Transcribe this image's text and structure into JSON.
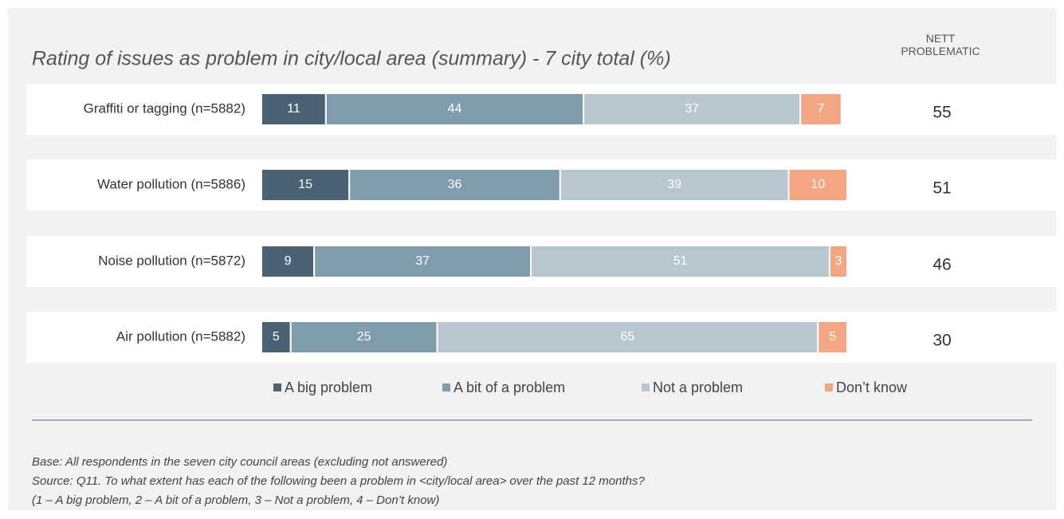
{
  "chart_data": {
    "type": "stacked-bar-horizontal",
    "title": "Rating of issues as problem in city/local area (summary) - 7 city total (%)",
    "categories": [
      "Graffiti or tagging (n=5882)",
      "Water pollution (n=5886)",
      "Noise pollution (n=5872)",
      "Air pollution (n=5882)"
    ],
    "series": [
      {
        "name": "A big problem",
        "color": "#4a6273",
        "values": [
          11,
          15,
          9,
          5
        ]
      },
      {
        "name": "A bit of a problem",
        "color": "#7f9caa",
        "values": [
          44,
          36,
          37,
          25
        ]
      },
      {
        "name": "Not a problem",
        "color": "#b7c7cf",
        "values": [
          37,
          39,
          51,
          65
        ]
      },
      {
        "name": "Don’t know",
        "color": "#f4a683",
        "values": [
          7,
          10,
          3,
          5
        ]
      }
    ],
    "xlim": [
      0,
      100
    ],
    "nett": {
      "label": "NETT PROBLEMATIC",
      "values": [
        55,
        51,
        46,
        30
      ]
    },
    "legend": "bottom",
    "notes": [
      "Base: All respondents in the seven city council areas (excluding not answered)",
      "Source: Q11. To what extent has each of the following been a problem in <city/local area> over the past 12 months?",
      "(1 – A big problem, 2 – A bit of a problem, 3 – Not a problem, 4 – Don’t know)"
    ]
  }
}
